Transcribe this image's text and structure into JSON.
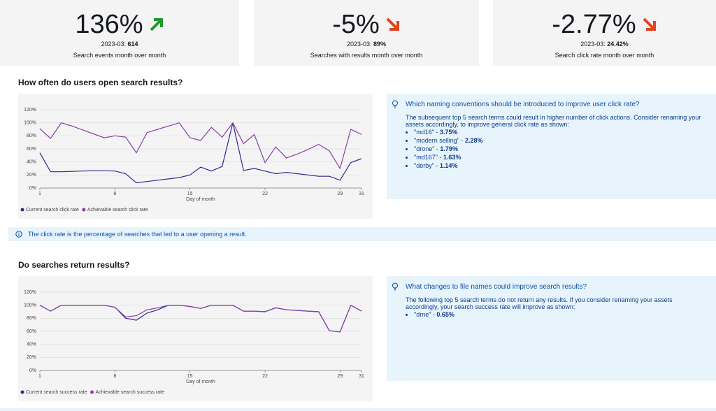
{
  "kpis": [
    {
      "value": "136%",
      "period": "2023-03:",
      "count": "614",
      "caption": "Search events month over month"
    },
    {
      "value": "-5%",
      "period": "2023-03:",
      "count": "89%",
      "caption": "Searches with results month over month"
    },
    {
      "value": "-2.77%",
      "period": "2023-03:",
      "count": "24.42%",
      "caption": "Search click rate month over month"
    }
  ],
  "sections": [
    {
      "title": "How often do users open search results?",
      "insight": {
        "question": "Which naming conventions should be introduced to improve user click rate?",
        "text": "The subsequent top 5 search terms could result in higher number of click actions. Consider renaming your assets accordingly, to improve general click rate as shown:",
        "items": [
          {
            "term": "\"md16\" -",
            "value": "3.75%"
          },
          {
            "term": "\"modern selling\" -",
            "value": "2.28%"
          },
          {
            "term": "\"drone\" -",
            "value": "1.79%"
          },
          {
            "term": "\"md167\" -",
            "value": "1.63%"
          },
          {
            "term": "\"derby\" -",
            "value": "1.14%"
          }
        ]
      },
      "note": "The click rate is the percentage of searches that led to a user opening a result."
    },
    {
      "title": "Do searches return results?",
      "insight": {
        "question": "What changes to file names could improve search results?",
        "text": "The following top 5 search terms do not return any results. If you consider renaming your assets accordingly, your search success rate will improve as shown:",
        "items": [
          {
            "term": "\"drne\" -",
            "value": "0.65%"
          }
        ]
      }
    }
  ],
  "chart_data": [
    {
      "type": "line",
      "x_label": "Day of month",
      "x": [
        1,
        2,
        3,
        4,
        5,
        6,
        7,
        8,
        9,
        10,
        11,
        12,
        13,
        14,
        15,
        16,
        17,
        18,
        19,
        20,
        21,
        22,
        23,
        24,
        25,
        26,
        27,
        28,
        29,
        30,
        31
      ],
      "xlim": [
        1,
        31
      ],
      "xticks": [
        1,
        8,
        15,
        22,
        29,
        31
      ],
      "ylim": [
        0,
        120
      ],
      "yticks": [
        {
          "value": 0,
          "label": "0%"
        },
        {
          "value": 20,
          "label": "20%"
        },
        {
          "value": 40,
          "label": "40%"
        },
        {
          "value": 60,
          "label": "60%"
        },
        {
          "value": 80,
          "label": "80%"
        },
        {
          "value": 100,
          "label": "100%"
        },
        {
          "value": 120,
          "label": "120%"
        }
      ],
      "grid": true,
      "series": [
        {
          "name": "Current search click rate",
          "color": "#2e2a8f",
          "values": [
            54,
            25,
            25,
            25.5,
            26,
            26.5,
            26.5,
            26,
            22,
            8,
            10,
            12,
            14,
            16,
            20,
            32,
            26,
            33,
            100,
            27,
            30,
            26,
            22,
            24,
            22,
            20,
            18,
            18,
            12,
            39,
            45
          ]
        },
        {
          "name": "Achievable search click rate",
          "color": "#8a3ea6",
          "values": [
            91,
            76,
            100,
            95,
            89,
            83,
            77,
            80,
            78,
            54,
            85,
            90,
            95,
            100,
            77,
            73,
            93,
            78,
            100,
            68,
            82,
            39,
            63,
            46,
            52,
            59,
            67,
            57,
            30,
            90,
            82
          ]
        }
      ]
    },
    {
      "type": "line",
      "x_label": "Day of month",
      "x": [
        1,
        2,
        3,
        4,
        5,
        6,
        7,
        8,
        9,
        10,
        11,
        12,
        13,
        14,
        15,
        16,
        17,
        18,
        19,
        20,
        21,
        22,
        23,
        24,
        25,
        26,
        27,
        28,
        29,
        30,
        31
      ],
      "xlim": [
        1,
        31
      ],
      "xticks": [
        1,
        8,
        15,
        22,
        29,
        31
      ],
      "ylim": [
        0,
        120
      ],
      "yticks": [
        {
          "value": 0,
          "label": "0%"
        },
        {
          "value": 20,
          "label": "20%"
        },
        {
          "value": 40,
          "label": "40%"
        },
        {
          "value": 60,
          "label": "60%"
        },
        {
          "value": 80,
          "label": "80%"
        },
        {
          "value": 100,
          "label": "100%"
        },
        {
          "value": 120,
          "label": "120%"
        }
      ],
      "grid": true,
      "series": [
        {
          "name": "Current search success rate",
          "color": "#2e2a8f",
          "values": [
            100,
            91,
            100,
            100,
            100,
            100,
            100,
            97,
            80,
            77,
            88,
            93,
            100,
            100,
            98,
            95,
            100,
            100,
            100,
            91,
            91,
            90,
            96,
            93,
            92,
            91,
            90,
            61,
            59,
            100,
            91
          ]
        },
        {
          "name": "Achievable search success rate",
          "color": "#8a3ea6",
          "values": [
            100,
            91,
            100,
            100,
            100,
            100,
            100,
            97,
            82,
            84,
            93,
            96,
            100,
            100,
            98,
            95,
            100,
            100,
            100,
            91,
            91,
            90,
            96,
            93,
            92,
            91,
            90,
            61,
            59,
            100,
            91
          ]
        }
      ]
    }
  ]
}
